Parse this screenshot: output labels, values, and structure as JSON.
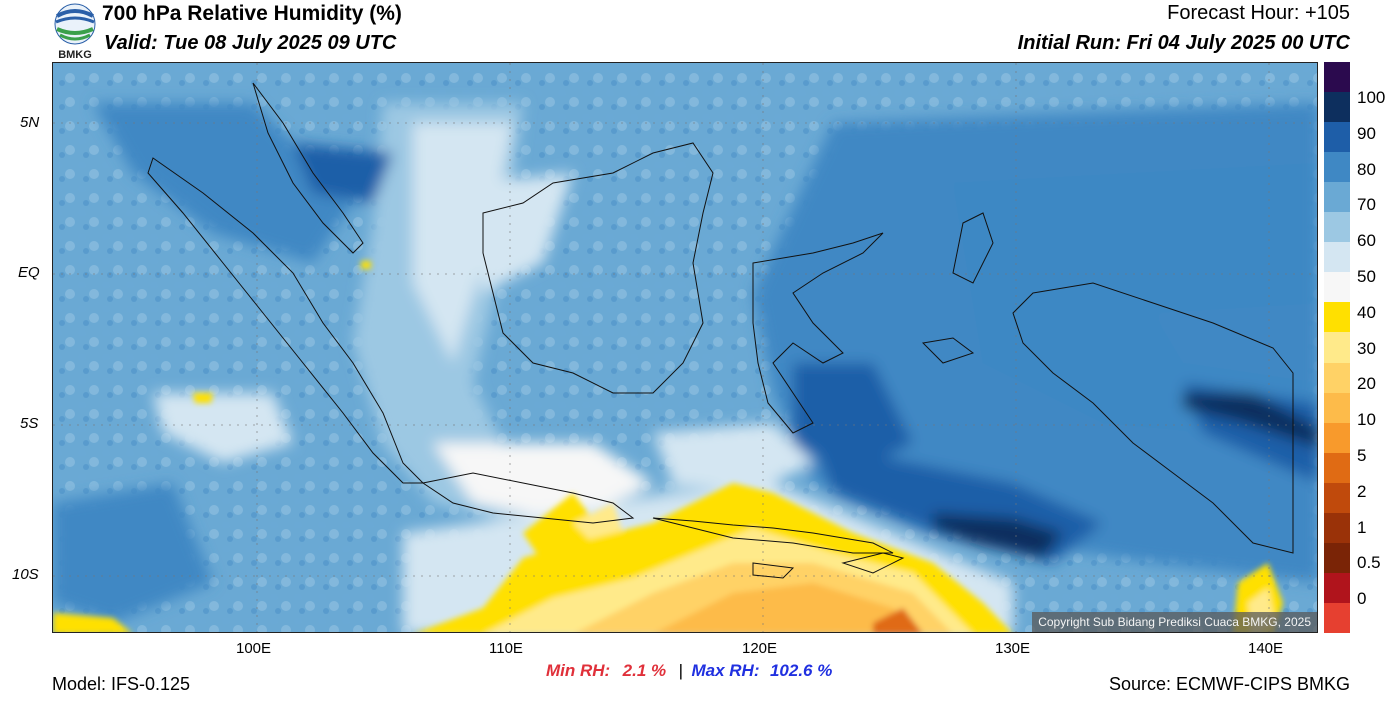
{
  "header": {
    "title": "700 hPa Relative Humidity (%)",
    "valid": "Valid: Tue 08 July 2025 09 UTC",
    "forecast_hour": "Forecast Hour: +105",
    "initial_run": "Initial Run: Fri 04 July 2025 00 UTC"
  },
  "logo": {
    "text": "BMKG"
  },
  "map": {
    "lat_labels": [
      "5N",
      "EQ",
      "5S",
      "10S"
    ],
    "lon_labels": [
      "100E",
      "110E",
      "120E",
      "130E",
      "140E"
    ],
    "copyright": "Copyright Sub Bidang Prediksi Cuaca BMKG, 2025"
  },
  "colorbar": {
    "labels": [
      "100",
      "90",
      "80",
      "70",
      "60",
      "50",
      "40",
      "30",
      "20",
      "10",
      "5",
      "2",
      "1",
      "0.5",
      "0"
    ],
    "colors": [
      "#2b0a4e",
      "#0d2f5e",
      "#1e5ea8",
      "#3f88c4",
      "#6aa9d4",
      "#9cc8e3",
      "#d4e6f2",
      "#f7f7f7",
      "#ffe000",
      "#ffea8a",
      "#ffd266",
      "#fdbb4a",
      "#f89a2c",
      "#e06b14",
      "#c04a0c",
      "#9a3208",
      "#7a2406",
      "#b0141c",
      "#e64030"
    ]
  },
  "footer": {
    "model": "Model: IFS-0.125",
    "min_label": "Min RH:",
    "min_value": "2.1 %",
    "separator": "|",
    "max_label": "Max RH:",
    "max_value": "102.6 %",
    "source": "Source: ECMWF-CIPS BMKG"
  }
}
